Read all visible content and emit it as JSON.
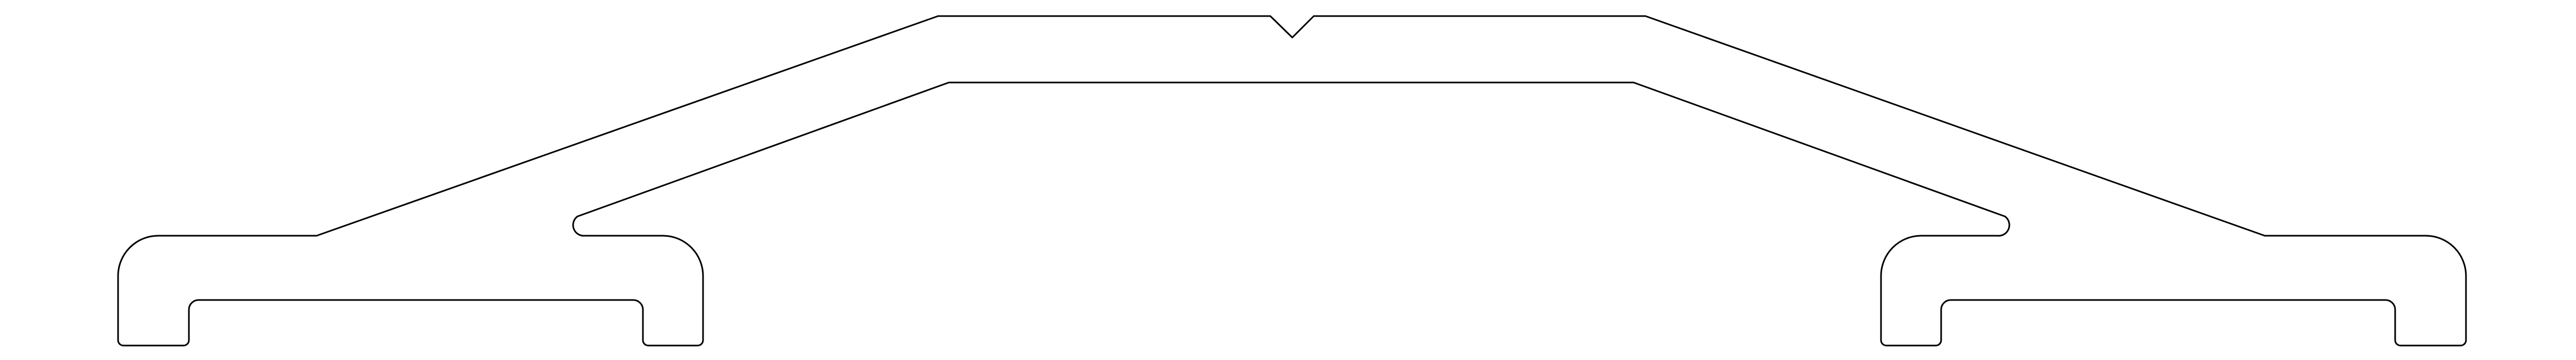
{
  "drawing": {
    "stroke_color": "#000000",
    "background_color": "#ffffff"
  }
}
